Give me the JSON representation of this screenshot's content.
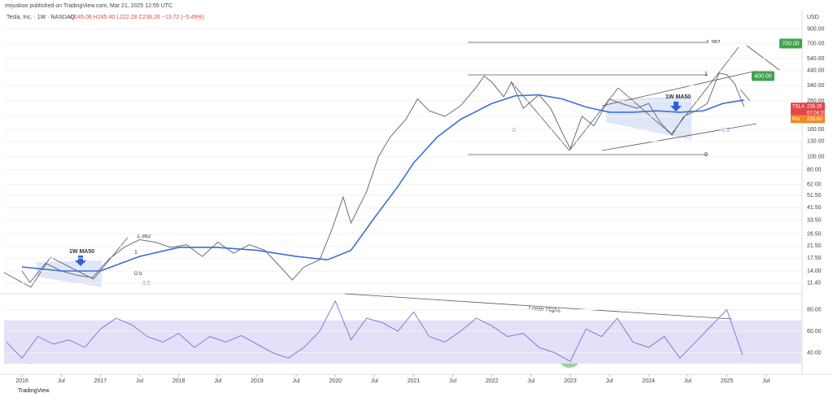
{
  "header": {
    "publisher": "mrjuskoo published on TradingView.com, Mar 21, 2025 12:55 UTC",
    "symbol": "Tesla, Inc. · 1W · NASDAQ",
    "ohlc": "O245.06 H245.40 L222.28 C236.26 −13.72 (−5.49%)"
  },
  "footer": "TradingView",
  "chart_data": [
    {
      "type": "line",
      "log_scale": true,
      "currency": "USD",
      "ylim": [
        9.6,
        1200
      ],
      "xlim": [
        2015.77,
        2025.95
      ],
      "yticks": [
        {
          "value": 900,
          "label": "900.00"
        },
        {
          "value": 700,
          "label": "700.00"
        },
        {
          "value": 540,
          "label": "540.00"
        },
        {
          "value": 440,
          "label": "440.00"
        },
        {
          "value": 340,
          "label": "340.00"
        },
        {
          "value": 260,
          "label": "260.00"
        },
        {
          "value": 200,
          "label": "200.00"
        },
        {
          "value": 160,
          "label": "160.00"
        },
        {
          "value": 130,
          "label": "130.00"
        },
        {
          "value": 100,
          "label": "100.00"
        },
        {
          "value": 80,
          "label": "80.00"
        },
        {
          "value": 62,
          "label": "62.00"
        },
        {
          "value": 51.5,
          "label": "51.50"
        },
        {
          "value": 41.5,
          "label": "41.50"
        },
        {
          "value": 33.5,
          "label": "33.50"
        },
        {
          "value": 26.5,
          "label": "26.50"
        },
        {
          "value": 21.5,
          "label": "21.50"
        },
        {
          "value": 17.5,
          "label": "17.50"
        },
        {
          "value": 14,
          "label": "14.00"
        },
        {
          "value": 11.4,
          "label": "11.40"
        }
      ],
      "series": [
        {
          "name": "TSLA",
          "color": "#6b6f7a",
          "x": [
            2016.0,
            2016.1,
            2016.3,
            2016.5,
            2016.7,
            2016.9,
            2017.1,
            2017.3,
            2017.5,
            2017.7,
            2017.9,
            2018.1,
            2018.3,
            2018.5,
            2018.7,
            2018.9,
            2019.1,
            2019.3,
            2019.45,
            2019.6,
            2019.8,
            2019.95,
            2020.1,
            2020.2,
            2020.4,
            2020.55,
            2020.7,
            2020.9,
            2021.05,
            2021.2,
            2021.4,
            2021.6,
            2021.8,
            2021.9,
            2022.0,
            2022.15,
            2022.25,
            2022.4,
            2022.6,
            2022.75,
            2022.9,
            2023.0,
            2023.15,
            2023.3,
            2023.5,
            2023.65,
            2023.85,
            2024.0,
            2024.15,
            2024.3,
            2024.45,
            2024.6,
            2024.75,
            2024.9,
            2025.0,
            2025.1,
            2025.22
          ],
          "values": [
            14,
            11.5,
            16,
            14,
            13,
            12.5,
            17,
            21,
            24,
            23,
            21,
            22,
            18,
            23,
            19,
            22,
            20,
            15,
            12,
            15,
            17,
            28,
            50,
            32,
            55,
            100,
            140,
            190,
            270,
            220,
            200,
            240,
            330,
            400,
            360,
            280,
            360,
            230,
            290,
            230,
            150,
            115,
            200,
            170,
            270,
            250,
            230,
            250,
            180,
            145,
            200,
            220,
            250,
            420,
            410,
            350,
            236
          ]
        },
        {
          "name": "1W MA50",
          "color": "#3b6fd6",
          "x": [
            2016.0,
            2016.5,
            2017.0,
            2017.5,
            2018.0,
            2018.5,
            2019.0,
            2019.5,
            2019.9,
            2020.2,
            2020.5,
            2020.8,
            2021.0,
            2021.3,
            2021.6,
            2022.0,
            2022.3,
            2022.6,
            2022.9,
            2023.2,
            2023.5,
            2023.8,
            2024.1,
            2024.4,
            2024.7,
            2024.95,
            2025.22
          ],
          "values": [
            15,
            14,
            14,
            18,
            21,
            21,
            20,
            18,
            17,
            20,
            35,
            60,
            90,
            140,
            190,
            250,
            285,
            290,
            270,
            235,
            215,
            215,
            220,
            215,
            220,
            250,
            265
          ]
        }
      ],
      "annotations": [
        "1W MA50",
        "1.382",
        "1",
        "0.5",
        "0",
        "3.5"
      ],
      "targets": [
        {
          "value": 700,
          "label": "700.00"
        },
        {
          "value": 400,
          "label": "400.00"
        }
      ],
      "last": {
        "name": "TSLA",
        "value": 236.26,
        "label": "236.26",
        "timer": "07:04:19"
      },
      "pre": {
        "name": "Pre",
        "value": 235.6,
        "label": "235.60"
      }
    },
    {
      "type": "line",
      "ylim": [
        20,
        94
      ],
      "xlim": [
        2015.77,
        2025.95
      ],
      "band": [
        30,
        70
      ],
      "yticks": [
        {
          "value": 80,
          "label": "80.00"
        },
        {
          "value": 60,
          "label": "60.00"
        },
        {
          "value": 40,
          "label": "40.00"
        }
      ],
      "xticks": [
        2016,
        {
          "value": 2016.5,
          "label": "Jul"
        },
        2017,
        {
          "value": 2017.5,
          "label": "Jul"
        },
        2018,
        {
          "value": 2018.5,
          "label": "Jul"
        },
        2019,
        {
          "value": 2019.5,
          "label": "Jul"
        },
        2020,
        {
          "value": 2020.5,
          "label": "Jul"
        },
        2021,
        {
          "value": 2021.5,
          "label": "Jul"
        },
        2022,
        {
          "value": 2022.5,
          "label": "Jul"
        },
        2023,
        {
          "value": 2023.5,
          "label": "Jul"
        },
        2024,
        {
          "value": 2024.5,
          "label": "Jul"
        },
        2025,
        {
          "value": 2025.5,
          "label": "Jul"
        }
      ],
      "series": [
        {
          "name": "RSI",
          "color": "#8b78d8",
          "x": [
            2015.8,
            2016.0,
            2016.2,
            2016.4,
            2016.6,
            2016.8,
            2017.0,
            2017.2,
            2017.4,
            2017.6,
            2017.8,
            2018.0,
            2018.2,
            2018.4,
            2018.6,
            2018.8,
            2019.0,
            2019.2,
            2019.4,
            2019.6,
            2019.8,
            2020.0,
            2020.2,
            2020.4,
            2020.6,
            2020.8,
            2021.0,
            2021.2,
            2021.4,
            2021.6,
            2021.8,
            2022.0,
            2022.2,
            2022.4,
            2022.6,
            2022.8,
            2023.0,
            2023.2,
            2023.4,
            2023.6,
            2023.8,
            2024.0,
            2024.2,
            2024.4,
            2024.6,
            2024.8,
            2025.0,
            2025.2
          ],
          "values": [
            50,
            35,
            55,
            48,
            52,
            45,
            62,
            72,
            66,
            55,
            50,
            58,
            45,
            55,
            50,
            56,
            48,
            40,
            35,
            45,
            60,
            88,
            52,
            72,
            68,
            60,
            78,
            55,
            50,
            60,
            72,
            65,
            55,
            58,
            45,
            40,
            32,
            62,
            55,
            72,
            50,
            45,
            55,
            35,
            50,
            65,
            80,
            38
          ]
        }
      ],
      "annotations": [
        "Lower Highs"
      ]
    }
  ]
}
